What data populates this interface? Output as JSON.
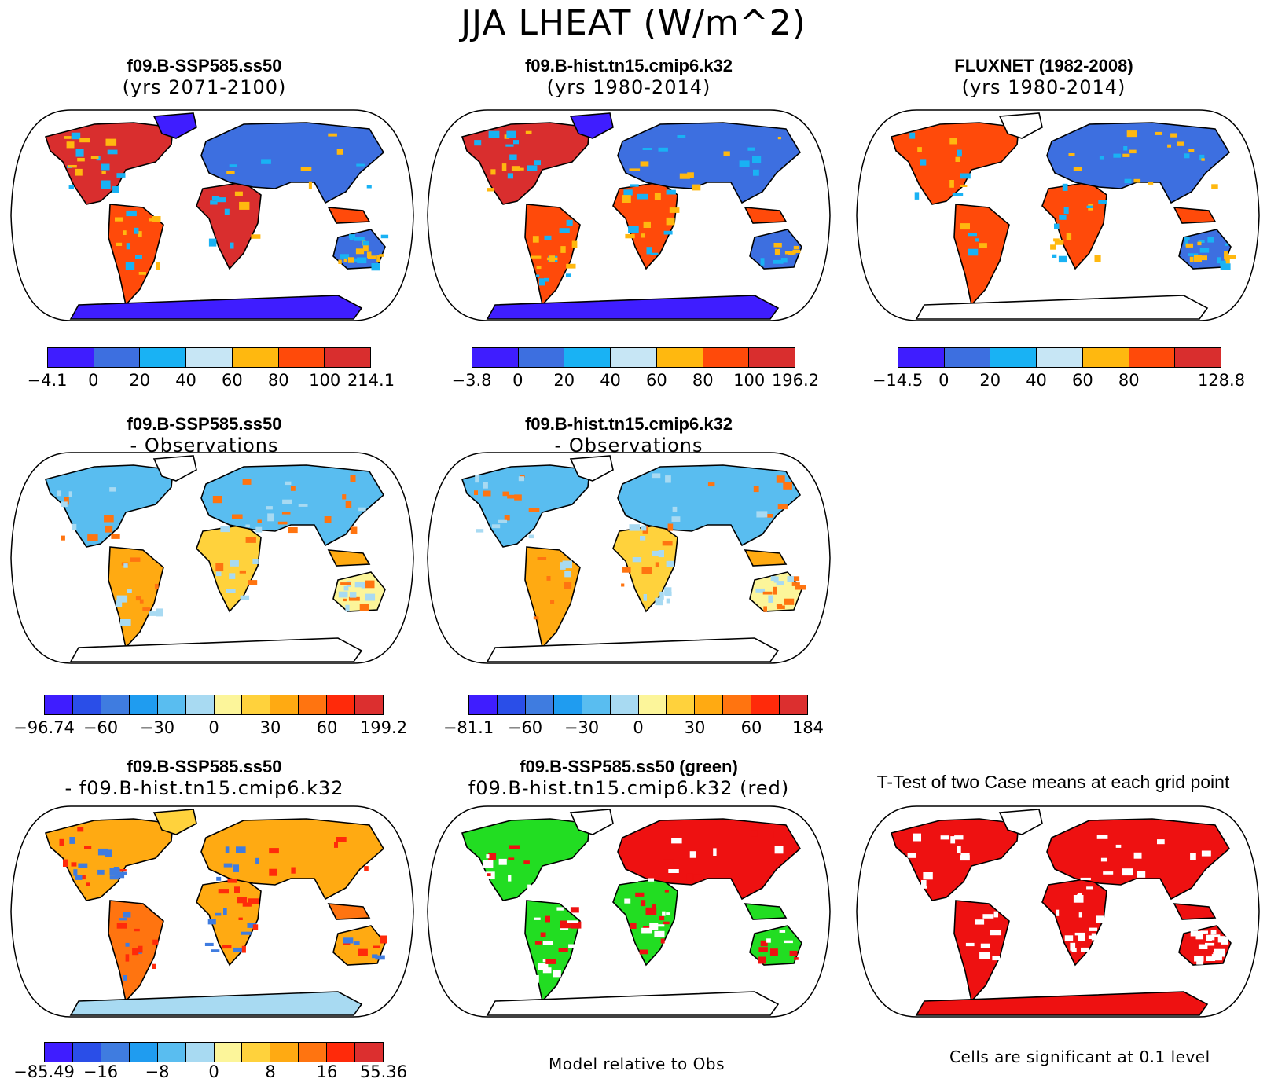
{
  "main_title": "JJA LHEAT (W/m^2)",
  "panels": {
    "p1": {
      "title": "f09.B-SSP585.ss50",
      "subtitle": "(yrs 2071-2100)"
    },
    "p2": {
      "title": "f09.B-hist.tn15.cmip6.k32",
      "subtitle": "(yrs 1980-2014)"
    },
    "p3": {
      "title": "FLUXNET (1982-2008)",
      "subtitle": "(yrs 1980-2014)"
    },
    "p4": {
      "title": "f09.B-SSP585.ss50",
      "subtitle": "- Observations"
    },
    "p5": {
      "title": "f09.B-hist.tn15.cmip6.k32",
      "subtitle": "- Observations"
    },
    "p7": {
      "title": "f09.B-SSP585.ss50",
      "subtitle": "- f09.B-hist.tn15.cmip6.k32"
    },
    "p8": {
      "title": "f09.B-SSP585.ss50 (green)",
      "subtitle": "f09.B-hist.tn15.cmip6.k32 (red)"
    },
    "p9": {
      "title": "T-Test of two Case means at each grid point"
    }
  },
  "colorbars": {
    "cb1": {
      "labels": [
        "-4.1",
        "0",
        "20",
        "40",
        "60",
        "80",
        "100",
        "214.1"
      ]
    },
    "cb2": {
      "labels": [
        "-3.8",
        "0",
        "20",
        "40",
        "60",
        "80",
        "100",
        "196.2"
      ]
    },
    "cb3": {
      "labels": [
        "-14.5",
        "0",
        "20",
        "40",
        "60",
        "80",
        "",
        "128.8"
      ]
    },
    "cb4": {
      "labels": [
        "-96.74",
        "-60",
        "-30",
        "0",
        "30",
        "60",
        "199.2"
      ]
    },
    "cb5": {
      "labels": [
        "-81.1",
        "-60",
        "-30",
        "0",
        "30",
        "60",
        "184"
      ]
    },
    "cb7": {
      "labels": [
        "-85.49",
        "-16",
        "-8",
        "0",
        "8",
        "16",
        "55.36"
      ]
    }
  },
  "palettes": {
    "seq7": [
      "#3f1dff",
      "#3d6fe0",
      "#19b2f4",
      "#c7e6f5",
      "#ffb80f",
      "#ff4a0a",
      "#d92e2e"
    ],
    "div12": [
      "#3f1dff",
      "#2a4ee8",
      "#3f7ce0",
      "#1f9cf0",
      "#59bdf0",
      "#a8daf2",
      "#fcf59a",
      "#ffd23c",
      "#ffaa12",
      "#ff7410",
      "#ff2a0a",
      "#dc2f2f"
    ]
  },
  "footnotes": {
    "mid": "Model relative to Obs",
    "right": "Cells are significant at 0.1 level"
  }
}
